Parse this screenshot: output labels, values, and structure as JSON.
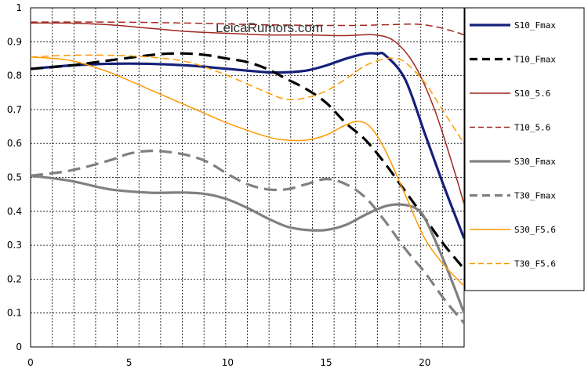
{
  "chart_data": {
    "type": "line",
    "watermark": "LeicaRumors.com",
    "xlim": [
      0,
      22
    ],
    "ylim": [
      0,
      1
    ],
    "x_ticks": [
      0,
      5,
      10,
      15,
      20
    ],
    "y_ticks": [
      0,
      0.1,
      0.2,
      0.3,
      0.4,
      0.5,
      0.6,
      0.7,
      0.8,
      0.9,
      1
    ],
    "grid": true,
    "legend_position": "right",
    "series": [
      {
        "name": "S10_Fmax",
        "color": "#14207a",
        "style": "solid-heavy",
        "x": [
          0,
          2,
          4,
          6,
          8,
          10,
          12,
          13,
          14,
          15,
          16,
          17,
          17.6,
          18,
          19,
          20,
          21,
          22
        ],
        "y": [
          0.82,
          0.83,
          0.835,
          0.835,
          0.83,
          0.82,
          0.81,
          0.81,
          0.815,
          0.83,
          0.85,
          0.865,
          0.865,
          0.86,
          0.79,
          0.63,
          0.47,
          0.32
        ]
      },
      {
        "name": "T10_Fmax",
        "color": "#000000",
        "style": "dashed-heavy",
        "x": [
          0,
          2,
          4,
          6,
          7,
          8,
          9,
          10,
          11,
          12,
          13,
          14,
          15,
          16,
          17,
          18,
          19,
          20,
          21,
          22
        ],
        "y": [
          0.82,
          0.83,
          0.845,
          0.86,
          0.865,
          0.865,
          0.86,
          0.85,
          0.84,
          0.82,
          0.79,
          0.76,
          0.72,
          0.66,
          0.61,
          0.54,
          0.46,
          0.38,
          0.3,
          0.23
        ]
      },
      {
        "name": "S10_5.6",
        "color": "#a0281e",
        "style": "solid",
        "x": [
          0,
          2,
          4,
          6,
          8,
          10,
          12,
          14,
          16,
          17.5,
          18.5,
          19.5,
          20.5,
          21.5,
          22
        ],
        "y": [
          0.955,
          0.955,
          0.95,
          0.94,
          0.93,
          0.925,
          0.92,
          0.92,
          0.918,
          0.92,
          0.9,
          0.83,
          0.7,
          0.52,
          0.42
        ]
      },
      {
        "name": "T10_5.6",
        "color": "#a0281e",
        "style": "dashed",
        "x": [
          0,
          4,
          8,
          12,
          16,
          18,
          19.5,
          20.5,
          21.5,
          22
        ],
        "y": [
          0.958,
          0.958,
          0.955,
          0.95,
          0.948,
          0.95,
          0.952,
          0.945,
          0.93,
          0.92
        ]
      },
      {
        "name": "S30_Fmax",
        "color": "#808080",
        "style": "solid-heavy",
        "x": [
          0,
          2,
          4,
          6,
          7,
          8,
          9,
          10,
          11,
          12,
          13,
          14,
          15,
          16,
          17,
          18,
          18.8,
          19.5,
          20,
          21,
          22
        ],
        "y": [
          0.505,
          0.49,
          0.465,
          0.455,
          0.455,
          0.455,
          0.45,
          0.435,
          0.41,
          0.38,
          0.355,
          0.345,
          0.345,
          0.36,
          0.39,
          0.415,
          0.42,
          0.41,
          0.38,
          0.25,
          0.1
        ]
      },
      {
        "name": "T30_Fmax",
        "color": "#808080",
        "style": "dashed-heavy",
        "x": [
          0,
          2,
          4,
          5,
          6,
          7,
          8,
          9,
          10,
          11,
          12,
          13,
          14,
          15,
          16,
          17,
          18,
          19,
          20,
          21,
          22
        ],
        "y": [
          0.505,
          0.52,
          0.55,
          0.57,
          0.578,
          0.575,
          0.565,
          0.545,
          0.51,
          0.48,
          0.465,
          0.465,
          0.48,
          0.495,
          0.48,
          0.44,
          0.37,
          0.29,
          0.22,
          0.14,
          0.07
        ]
      },
      {
        "name": "S30_F5.6",
        "color": "#ff9900",
        "style": "solid",
        "x": [
          0,
          2,
          4,
          6,
          8,
          10,
          12,
          13,
          14,
          15,
          16,
          16.7,
          17.3,
          18,
          19,
          20,
          21,
          22
        ],
        "y": [
          0.855,
          0.845,
          0.81,
          0.76,
          0.71,
          0.66,
          0.62,
          0.61,
          0.61,
          0.625,
          0.655,
          0.665,
          0.645,
          0.58,
          0.45,
          0.32,
          0.24,
          0.18
        ]
      },
      {
        "name": "T30_F5.6",
        "color": "#ff9900",
        "style": "dashed",
        "x": [
          0,
          2,
          4,
          6,
          8,
          10,
          12,
          13,
          14,
          15,
          16,
          17,
          18,
          18.5,
          19,
          20,
          21,
          22
        ],
        "y": [
          0.855,
          0.86,
          0.86,
          0.855,
          0.84,
          0.8,
          0.75,
          0.73,
          0.735,
          0.755,
          0.79,
          0.83,
          0.85,
          0.85,
          0.84,
          0.78,
          0.69,
          0.6
        ]
      }
    ]
  }
}
